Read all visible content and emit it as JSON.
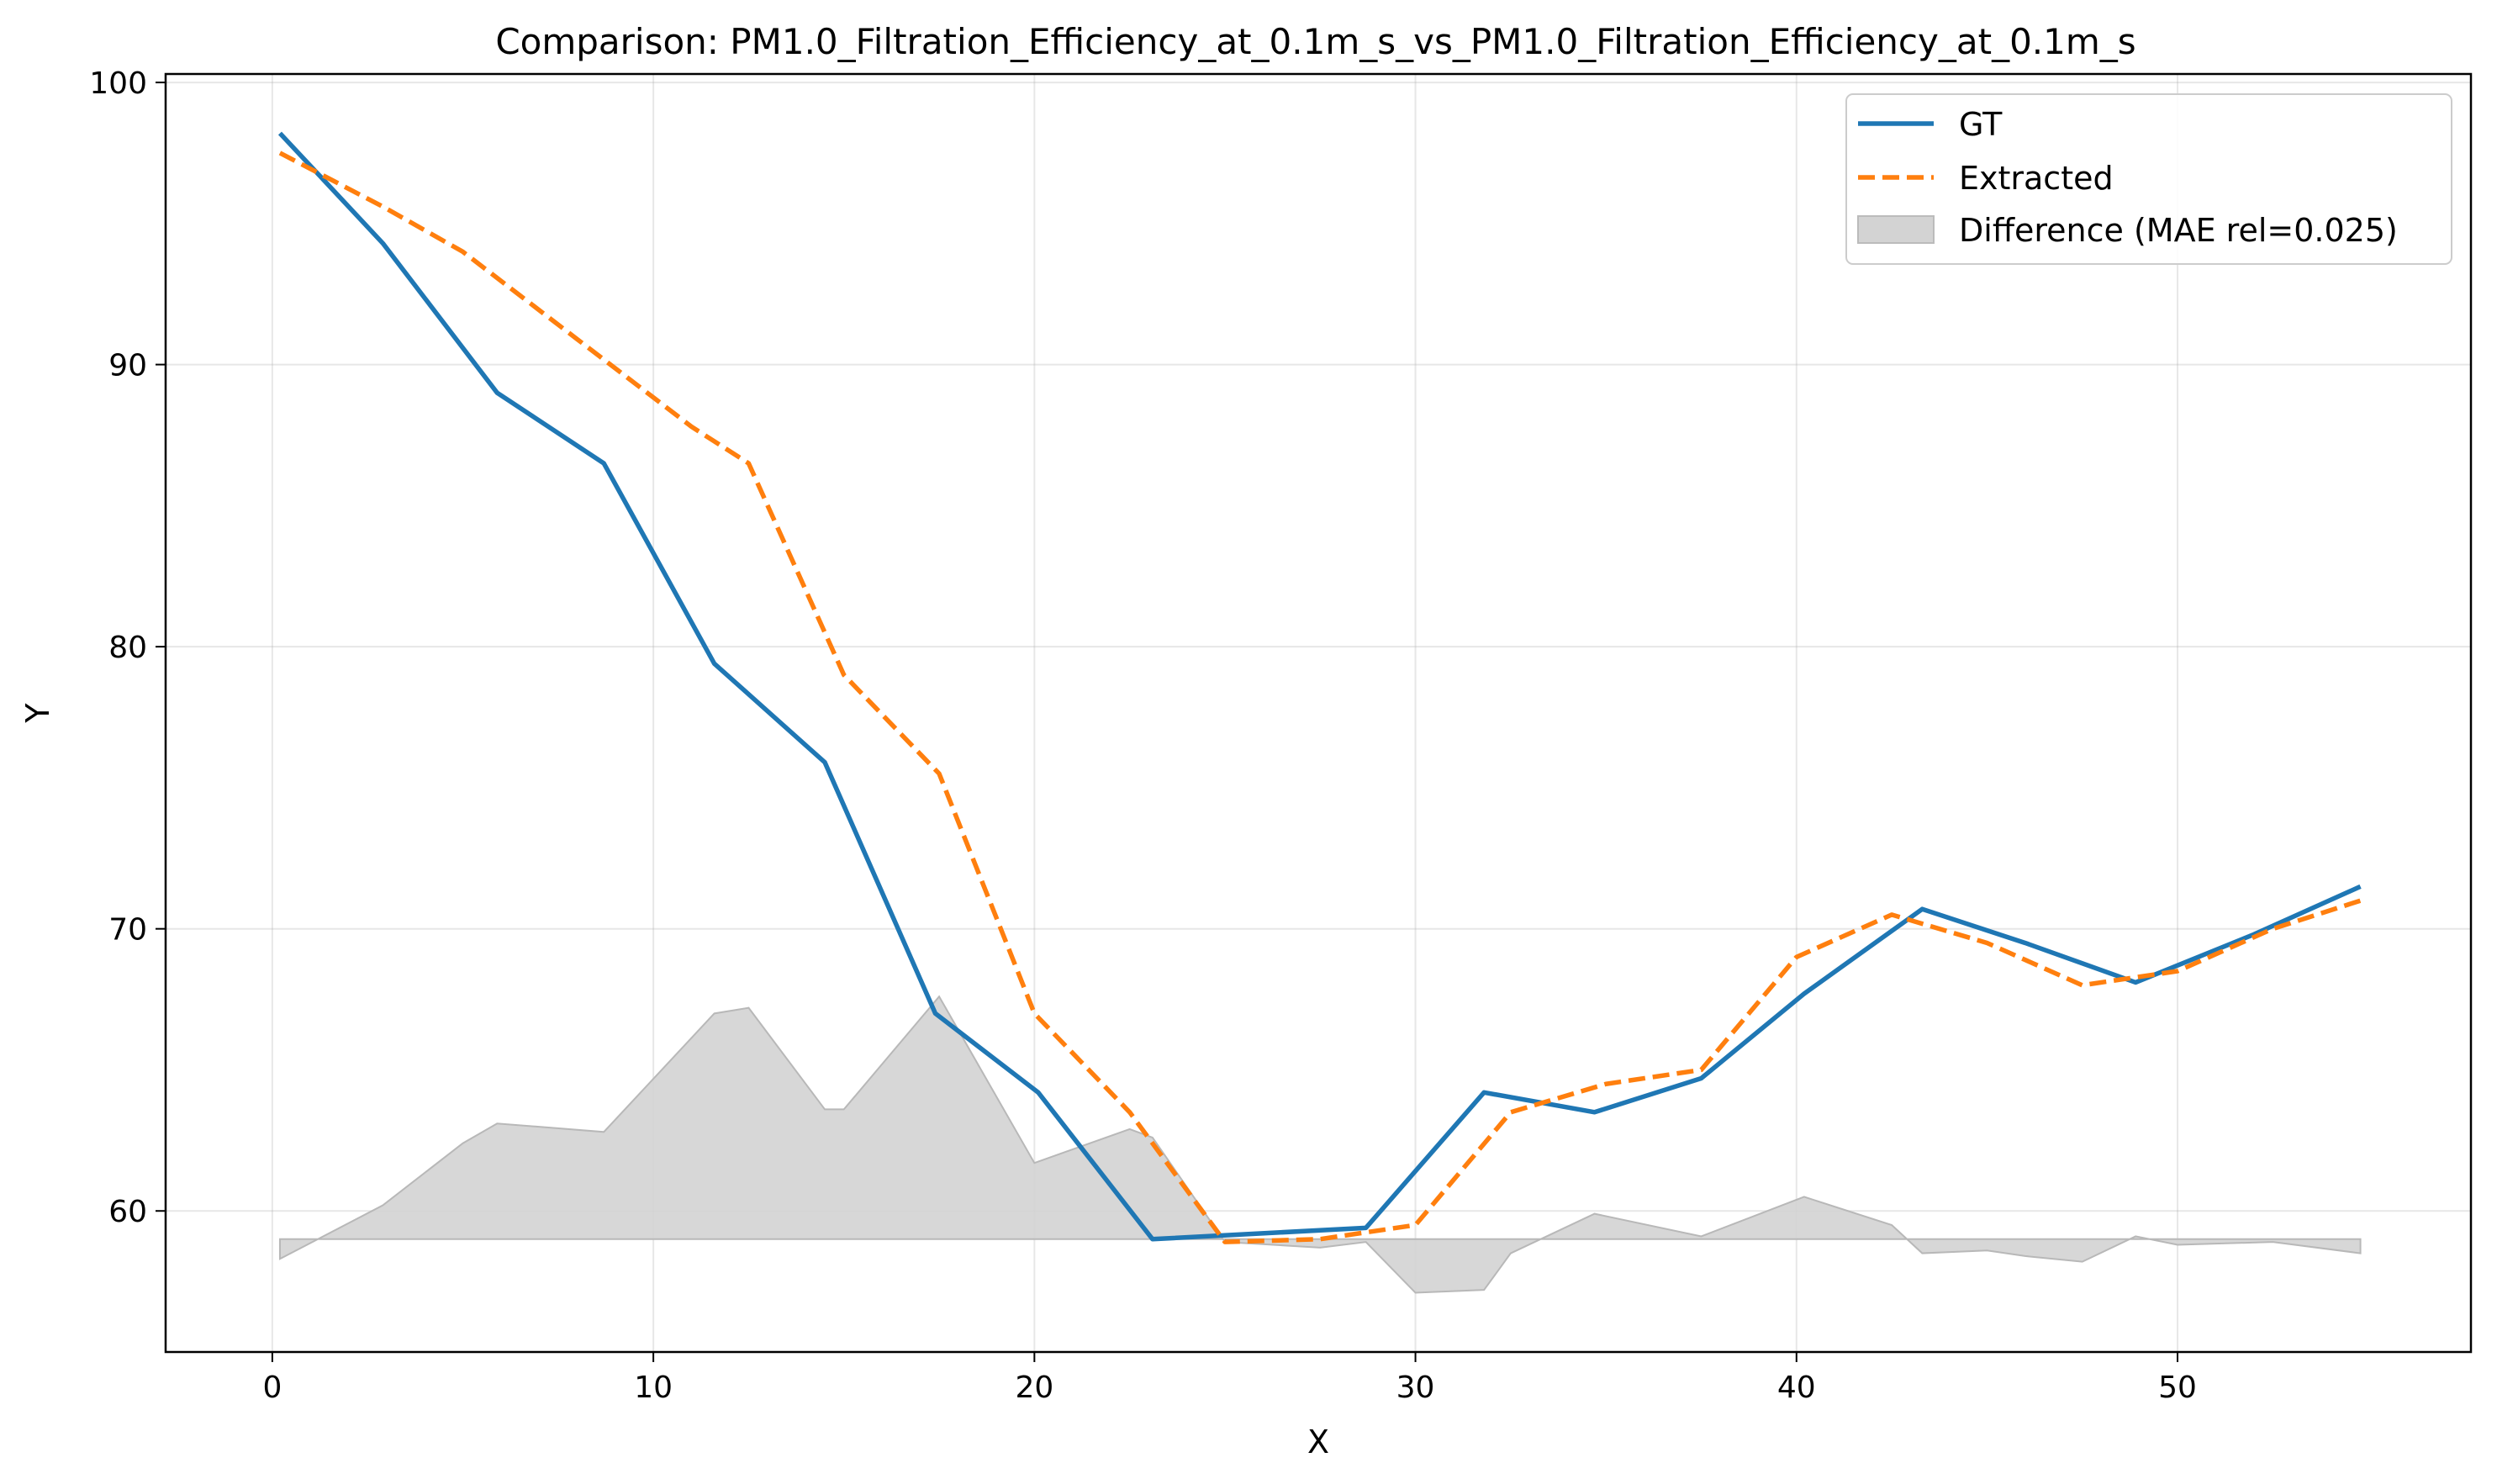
{
  "chart_data": {
    "type": "line",
    "title": "Comparison: PM1.0_Filtration_Efficiency_at_0.1m_s_vs_PM1.0_Filtration_Efficiency_at_0.1m_s",
    "xlabel": "X",
    "ylabel": "Y",
    "xlim": [
      -2.8,
      57.7
    ],
    "ylim": [
      55,
      100.3
    ],
    "x_ticks": [
      0,
      10,
      20,
      30,
      40,
      50
    ],
    "y_ticks": [
      60,
      70,
      80,
      90,
      100
    ],
    "grid": true,
    "legend_position": "top-right",
    "series": [
      {
        "name": "GT",
        "color": "#1f77b4",
        "style": "solid",
        "x": [
          0.2,
          2.9,
          5.9,
          8.7,
          11.6,
          14.5,
          17.4,
          20.1,
          23.1,
          28.7,
          31.8,
          34.7,
          37.5,
          40.2,
          43.3,
          46.0,
          48.9,
          52.0,
          54.8
        ],
        "y": [
          98.2,
          94.3,
          89.0,
          86.5,
          79.4,
          75.9,
          67.0,
          64.2,
          59.0,
          59.4,
          64.2,
          63.5,
          64.7,
          67.7,
          70.7,
          69.5,
          68.1,
          69.8,
          71.5
        ]
      },
      {
        "name": "Extracted",
        "color": "#ff7f0e",
        "style": "dashed",
        "x": [
          0.2,
          2.9,
          5.0,
          8.0,
          11.0,
          12.5,
          15.0,
          17.5,
          20.0,
          22.5,
          25.0,
          27.5,
          30.0,
          32.5,
          35.0,
          37.5,
          40.0,
          42.5,
          45.0,
          47.5,
          50.0,
          52.5,
          54.8
        ],
        "y": [
          97.5,
          95.6,
          94.0,
          90.9,
          87.8,
          86.5,
          79.0,
          75.5,
          67.0,
          63.5,
          58.9,
          59.0,
          59.5,
          63.5,
          64.5,
          65.0,
          69.0,
          70.5,
          69.5,
          68.0,
          68.5,
          70.0,
          71.0
        ]
      }
    ],
    "difference": {
      "name": "Difference (MAE rel=0.025)",
      "color": "#d3d3d3",
      "baseline": 59.0,
      "x": [
        0.2,
        2.9,
        5.0,
        5.9,
        8.7,
        11.6,
        12.5,
        14.5,
        15.0,
        17.5,
        20.0,
        22.5,
        23.1,
        25.0,
        27.5,
        28.7,
        30.0,
        31.8,
        32.5,
        34.7,
        37.5,
        40.2,
        42.5,
        43.3,
        45.0,
        46.0,
        47.5,
        48.9,
        50.0,
        52.5,
        54.8
      ],
      "y": [
        58.3,
        60.2,
        62.4,
        63.1,
        62.8,
        67.0,
        67.2,
        63.6,
        63.6,
        67.6,
        61.7,
        62.9,
        62.6,
        58.9,
        58.7,
        58.9,
        57.1,
        57.2,
        58.5,
        59.9,
        59.1,
        60.5,
        59.5,
        58.5,
        58.6,
        58.4,
        58.2,
        59.1,
        58.8,
        58.9,
        58.5
      ]
    }
  }
}
